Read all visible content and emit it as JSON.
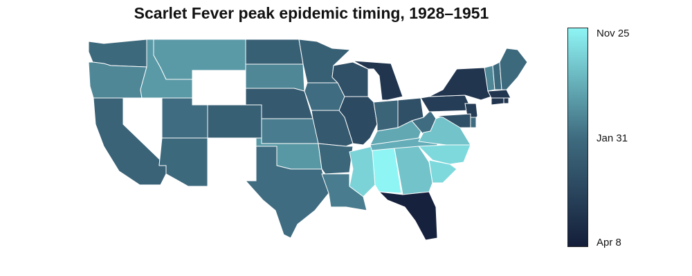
{
  "title": "Scarlet Fever peak epidemic timing, 1928–1951",
  "legend": {
    "labels": [
      "Nov 25",
      "Jan 31",
      "Apr 8"
    ],
    "colors": [
      "#8ef4f4",
      "#3f6c80",
      "#141e3a"
    ]
  },
  "colors": {
    "missing": "#ffffff",
    "border": "#ffffff"
  },
  "chart_data": {
    "type": "choropleth",
    "title": "Scarlet Fever peak epidemic timing, 1928–1951",
    "scale": {
      "min_label": "Nov 25",
      "mid_label": "Jan 31",
      "max_label": "Apr 8",
      "min_value": 0,
      "max_value": 1
    },
    "values": {
      "WA": 0.52,
      "OR": 0.4,
      "CA": 0.56,
      "NV": null,
      "ID": 0.33,
      "MT": 0.33,
      "WY": null,
      "UT": 0.5,
      "AZ": 0.52,
      "CO": 0.58,
      "NM": null,
      "ND": 0.58,
      "SD": 0.4,
      "NE": 0.62,
      "KS": 0.44,
      "OK": 0.34,
      "TX": 0.5,
      "MN": 0.58,
      "IA": 0.5,
      "MO": 0.62,
      "AR": 0.54,
      "LA": 0.44,
      "WI": 0.68,
      "IL": 0.72,
      "MS": 0.12,
      "MI": 0.85,
      "IN": 0.55,
      "KY": 0.28,
      "TN": 0.26,
      "AL": 0.0,
      "OH": 0.68,
      "GA": 0.18,
      "FL": 0.98,
      "WV": 0.5,
      "VA": 0.18,
      "NC": 0.1,
      "SC": 0.1,
      "PA": 0.8,
      "NY": 0.85,
      "VT": 0.4,
      "NH": 0.52,
      "ME": 0.52,
      "MA": 0.85,
      "RI": 0.85,
      "CT": 0.85,
      "NJ": 0.8,
      "DE": 0.5,
      "MD": 0.68
    }
  }
}
